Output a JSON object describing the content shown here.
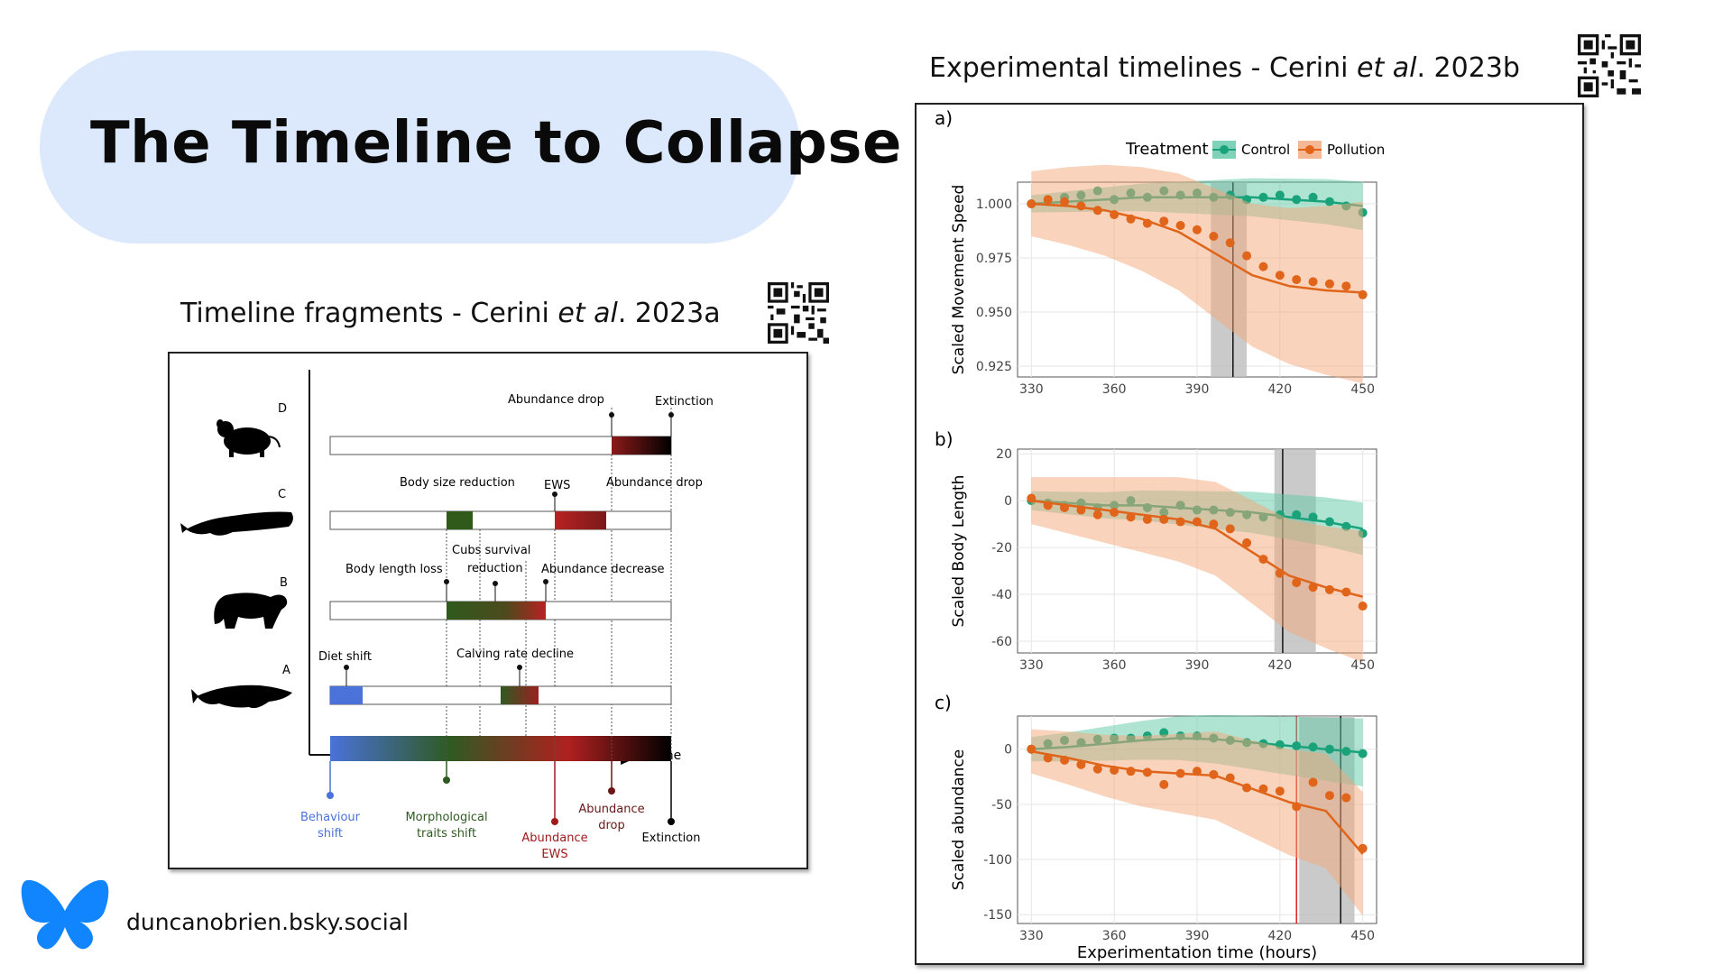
{
  "slide": {
    "title": "The Timeline to Collapse",
    "handle": "duncanobrien.bsky.social"
  },
  "left_caption": {
    "prefix": "Timeline fragments - Cerini ",
    "italic": "et al",
    "suffix": ". 2023a"
  },
  "right_caption": {
    "prefix": "Experimental timelines - Cerini ",
    "italic": "et al",
    "suffix": ". 2023b"
  },
  "colors": {
    "pill": "#dce8fb",
    "control": "#1aa37a",
    "pollution": "#e0641a",
    "butterfly": "#1185fe"
  },
  "icons": [
    "qr-code-icon",
    "butterfly-icon",
    "rodent-silhouette-icon",
    "sperm-whale-silhouette-icon",
    "bear-silhouette-icon",
    "humpback-whale-silhouette-icon"
  ],
  "timeline": {
    "rows": [
      {
        "letter": "D",
        "labels": [
          "Abundance drop",
          "Extinction"
        ]
      },
      {
        "letter": "C",
        "labels": [
          "Body size reduction",
          "EWS",
          "Abundance drop"
        ]
      },
      {
        "letter": "B",
        "labels": [
          "Body length loss",
          "Cubs survival",
          "reduction",
          "Abundance decrease"
        ]
      },
      {
        "letter": "A",
        "labels": [
          "Diet shift",
          "Calving rate decline"
        ]
      }
    ],
    "axis_label": "Time",
    "bottom_labels": {
      "behaviour": [
        "Behaviour",
        "shift"
      ],
      "morph": [
        "Morphological",
        "traits shift"
      ],
      "ews": [
        "Abundance",
        "EWS"
      ],
      "drop": [
        "Abundance",
        "drop"
      ],
      "extinction": "Extinction"
    }
  },
  "legend": {
    "title": "Treatment",
    "items": [
      "Control",
      "Pollution"
    ]
  },
  "panel_labels": [
    "a)",
    "b)",
    "c)"
  ],
  "chart_data": [
    {
      "type": "scatter",
      "panel": "a)",
      "ylabel": "Scaled Movement Speed",
      "xlabel": "",
      "xlim": [
        325,
        455
      ],
      "ylim": [
        0.92,
        1.01
      ],
      "xticks": [
        330,
        360,
        390,
        420,
        450
      ],
      "yticks": [
        0.925,
        0.95,
        0.975,
        1.0
      ],
      "ytick_labels": [
        "0.925",
        "0.950",
        "0.975",
        "1.000"
      ],
      "shade": [
        395,
        408
      ],
      "vline": 403,
      "series": [
        {
          "name": "Control",
          "x": [
            330,
            336,
            342,
            348,
            354,
            360,
            366,
            372,
            378,
            384,
            390,
            396,
            402,
            408,
            414,
            420,
            426,
            432,
            438,
            444,
            450
          ],
          "y": [
            1.0,
            1.001,
            1.003,
            1.004,
            1.006,
            1.002,
            1.005,
            1.003,
            1.006,
            1.004,
            1.005,
            1.003,
            1.004,
            1.002,
            1.003,
            1.004,
            1.002,
            1.003,
            1.001,
            0.999,
            0.996
          ],
          "fit": [
            1.0,
            1.001,
            1.002,
            1.003,
            1.003,
            1.003,
            1.003,
            1.002,
            1.001,
            0.999
          ],
          "band": 0.008
        },
        {
          "name": "Pollution",
          "x": [
            330,
            336,
            342,
            348,
            354,
            360,
            366,
            372,
            378,
            384,
            390,
            396,
            402,
            408,
            414,
            420,
            426,
            432,
            438,
            444,
            450
          ],
          "y": [
            1.0,
            1.002,
            1.001,
            0.999,
            0.997,
            0.995,
            0.993,
            0.991,
            0.992,
            0.99,
            0.988,
            0.985,
            0.982,
            0.976,
            0.971,
            0.967,
            0.965,
            0.964,
            0.963,
            0.962,
            0.958
          ],
          "fit": [
            1.0,
            0.999,
            0.997,
            0.993,
            0.987,
            0.977,
            0.967,
            0.962,
            0.96,
            0.959
          ],
          "band": 0.03
        }
      ]
    },
    {
      "type": "scatter",
      "panel": "b)",
      "ylabel": "Scaled Body Length",
      "xlabel": "",
      "xlim": [
        325,
        455
      ],
      "ylim": [
        -65,
        22
      ],
      "xticks": [
        330,
        360,
        390,
        420,
        450
      ],
      "yticks": [
        -60,
        -40,
        -20,
        0,
        20
      ],
      "ytick_labels": [
        "-60",
        "-40",
        "-20",
        "0",
        "20"
      ],
      "shade": [
        418,
        433
      ],
      "vline": 421,
      "series": [
        {
          "name": "Control",
          "x": [
            330,
            336,
            342,
            348,
            354,
            360,
            366,
            372,
            378,
            384,
            390,
            396,
            402,
            408,
            414,
            420,
            426,
            432,
            438,
            444,
            450
          ],
          "y": [
            0,
            -1,
            -2,
            -1,
            -3,
            -2,
            0,
            -3,
            -5,
            -2,
            -4,
            -4,
            -5,
            -6,
            -7,
            -6,
            -6,
            -7,
            -9,
            -11,
            -14
          ],
          "fit": [
            0,
            -1,
            -2,
            -2,
            -3,
            -4,
            -5,
            -7,
            -9,
            -12
          ],
          "band": 8
        },
        {
          "name": "Pollution",
          "x": [
            330,
            336,
            342,
            348,
            354,
            360,
            366,
            372,
            378,
            384,
            390,
            396,
            402,
            408,
            414,
            420,
            426,
            432,
            438,
            444,
            450
          ],
          "y": [
            1,
            -2,
            -3,
            -4,
            -6,
            -5,
            -7,
            -8,
            -8,
            -9,
            -9,
            -10,
            -12,
            -18,
            -25,
            -31,
            -35,
            -37,
            -38,
            -39,
            -45
          ],
          "fit": [
            0,
            -2,
            -4,
            -6,
            -8,
            -12,
            -22,
            -32,
            -37,
            -41
          ],
          "band": 20
        }
      ]
    },
    {
      "type": "scatter",
      "panel": "c)",
      "ylabel": "Scaled abundance",
      "xlabel": "Experimentation time (hours)",
      "xlim": [
        325,
        455
      ],
      "ylim": [
        -158,
        30
      ],
      "xticks": [
        330,
        360,
        390,
        420,
        450
      ],
      "yticks": [
        -150,
        -100,
        -50,
        0
      ],
      "ytick_labels": [
        "-150",
        "-100",
        "-50",
        "0"
      ],
      "shade": [
        427,
        447
      ],
      "vline": 442,
      "red_vline": 426,
      "series": [
        {
          "name": "Control",
          "x": [
            330,
            336,
            342,
            348,
            354,
            360,
            366,
            372,
            378,
            384,
            390,
            396,
            402,
            408,
            414,
            420,
            426,
            432,
            438,
            444,
            450
          ],
          "y": [
            0,
            5,
            8,
            6,
            9,
            10,
            10,
            12,
            15,
            12,
            12,
            10,
            8,
            6,
            5,
            4,
            3,
            2,
            0,
            -2,
            -4
          ],
          "fit": [
            0,
            2,
            5,
            8,
            10,
            9,
            6,
            3,
            0,
            -3
          ],
          "band": 22
        },
        {
          "name": "Pollution",
          "x": [
            330,
            336,
            342,
            348,
            354,
            360,
            366,
            372,
            378,
            384,
            390,
            396,
            402,
            408,
            414,
            420,
            426,
            432,
            438,
            444,
            450
          ],
          "y": [
            0,
            -8,
            -10,
            -14,
            -18,
            -19,
            -20,
            -21,
            -32,
            -22,
            -20,
            -23,
            -26,
            -35,
            -36,
            -38,
            -52,
            -30,
            -42,
            -44,
            -90
          ],
          "fit": [
            -2,
            -8,
            -15,
            -20,
            -22,
            -24,
            -36,
            -48,
            -56,
            -95
          ],
          "band": 40
        }
      ]
    }
  ]
}
